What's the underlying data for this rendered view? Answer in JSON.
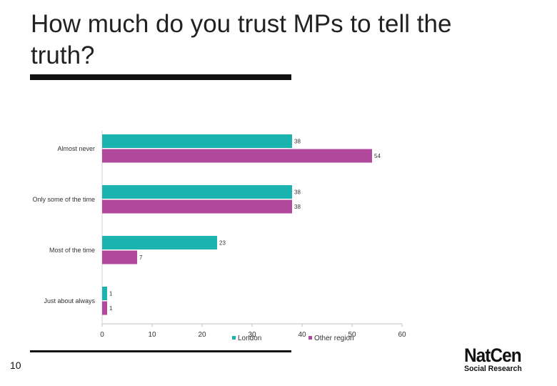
{
  "slide": {
    "title": "How much do you trust MPs to tell the truth?",
    "page_number": "10",
    "logo": {
      "main": "NatCen",
      "sub": "Social Research"
    }
  },
  "chart_data": {
    "type": "bar",
    "orientation": "horizontal",
    "title": "",
    "xlabel": "",
    "ylabel": "",
    "categories": [
      "Almost never",
      "Only some of the time",
      "Most of the time",
      "Just about always"
    ],
    "series": [
      {
        "name": "London",
        "values": [
          38,
          38,
          23,
          1
        ],
        "color": "#1ab3b0"
      },
      {
        "name": "Other region",
        "values": [
          54,
          38,
          7,
          1
        ],
        "color": "#b0489c"
      }
    ],
    "xlim": [
      0,
      60
    ],
    "x_ticks": [
      0,
      10,
      20,
      30,
      40,
      50,
      60
    ],
    "grid": false,
    "legend": "bottom",
    "data_labels": true
  }
}
